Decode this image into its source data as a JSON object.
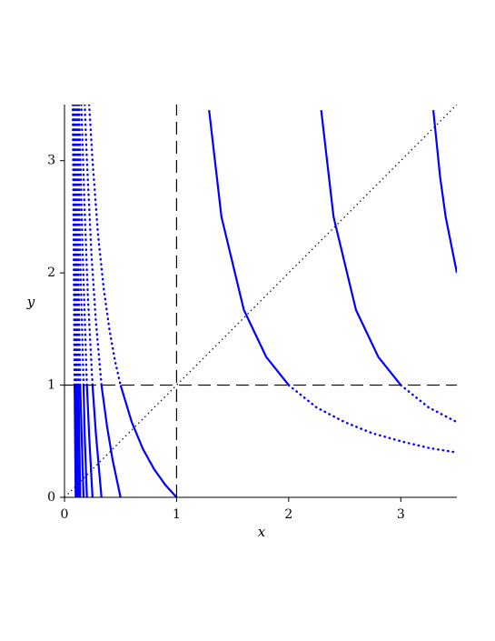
{
  "chart_data": {
    "type": "line",
    "x_label": "x",
    "y_label": "y",
    "xlim": [
      0,
      3.5
    ],
    "ylim": [
      0,
      3.5
    ],
    "xticks": [
      0,
      1,
      2,
      3
    ],
    "yticks": [
      0,
      1,
      2,
      3
    ],
    "series": [
      {
        "color": "#0000ff",
        "dash": "solid",
        "x": [
          0.5,
          0.6,
          0.7,
          0.8,
          0.9,
          1
        ],
        "values": [
          1,
          0.67,
          0.43,
          0.25,
          0.11,
          0
        ]
      },
      {
        "color": "#0000ff",
        "dash": "dotted",
        "x": [
          0.22,
          0.25,
          0.3,
          0.35,
          0.4,
          0.45,
          0.5
        ],
        "values": [
          3.5,
          3,
          2.33,
          1.86,
          1.5,
          1.22,
          1
        ]
      },
      {
        "color": "#0000ff",
        "dash": "solid",
        "x": [
          0.33,
          0.38,
          0.43,
          0.5
        ],
        "values": [
          1,
          0.63,
          0.33,
          0
        ]
      },
      {
        "color": "#0000ff",
        "dash": "dotted",
        "x": [
          0.18,
          0.2,
          0.24,
          0.28,
          0.33
        ],
        "values": [
          3.5,
          3,
          2.17,
          1.57,
          1
        ]
      },
      {
        "color": "#0000ff",
        "dash": "solid",
        "x": [
          0.25,
          0.28,
          0.33
        ],
        "values": [
          1,
          0.57,
          0
        ]
      },
      {
        "color": "#0000ff",
        "dash": "dotted",
        "x": [
          0.15,
          0.18,
          0.21,
          0.25
        ],
        "values": [
          3.5,
          2.56,
          1.76,
          1
        ]
      },
      {
        "color": "#0000ff",
        "dash": "solid",
        "x": [
          0.2,
          0.22,
          0.25
        ],
        "values": [
          1,
          0.55,
          0
        ]
      },
      {
        "color": "#0000ff",
        "dash": "dotted",
        "x": [
          0.13,
          0.16,
          0.2
        ],
        "values": [
          3.5,
          2.25,
          1
        ]
      },
      {
        "color": "#0000ff",
        "dash": "solid",
        "x": [
          0.17,
          0.18,
          0.2
        ],
        "values": [
          1,
          0.56,
          0
        ]
      },
      {
        "color": "#0000ff",
        "dash": "dotted",
        "x": [
          0.12,
          0.14,
          0.17
        ],
        "values": [
          3.5,
          2.14,
          1
        ]
      },
      {
        "color": "#0000ff",
        "dash": "solid",
        "x": [
          0.14,
          0.15,
          0.17
        ],
        "values": [
          1,
          0.67,
          0
        ]
      },
      {
        "color": "#0000ff",
        "dash": "dotted",
        "x": [
          0.11,
          0.125,
          0.14
        ],
        "values": [
          3.5,
          2,
          1
        ]
      },
      {
        "color": "#0000ff",
        "dash": "solid",
        "x": [
          0.125,
          0.14
        ],
        "values": [
          1,
          0
        ]
      },
      {
        "color": "#0000ff",
        "dash": "dotted",
        "x": [
          0.095,
          0.11,
          0.125
        ],
        "values": [
          3.5,
          2.09,
          1
        ]
      },
      {
        "color": "#0000ff",
        "dash": "solid",
        "x": [
          0.11,
          0.125
        ],
        "values": [
          1,
          0
        ]
      },
      {
        "color": "#0000ff",
        "dash": "dotted",
        "x": [
          0.087,
          0.1,
          0.11
        ],
        "values": [
          3.5,
          2,
          1
        ]
      },
      {
        "color": "#0000ff",
        "dash": "solid",
        "x": [
          0.1,
          0.11
        ],
        "values": [
          1,
          0
        ]
      },
      {
        "color": "#0000ff",
        "dash": "dotted",
        "x": [
          0.08,
          0.1
        ],
        "values": [
          3.5,
          1
        ]
      },
      {
        "color": "#0000ff",
        "dash": "solid",
        "x": [
          0.09,
          0.1
        ],
        "values": [
          1,
          0
        ]
      },
      {
        "color": "#0000ff",
        "dash": "dotted",
        "x": [
          0.074,
          0.09
        ],
        "values": [
          3.5,
          1
        ]
      },
      {
        "color": "#0000ff",
        "dash": "solid",
        "x": [
          1.29,
          1.4,
          1.6,
          1.8,
          2
        ],
        "values": [
          3.45,
          2.5,
          1.67,
          1.25,
          1
        ]
      },
      {
        "color": "#0000ff",
        "dash": "dotted",
        "x": [
          2,
          2.25,
          2.5,
          2.75,
          3,
          3.25,
          3.5
        ],
        "values": [
          1,
          0.8,
          0.67,
          0.57,
          0.5,
          0.44,
          0.4
        ]
      },
      {
        "color": "#0000ff",
        "dash": "solid",
        "x": [
          2.29,
          2.4,
          2.6,
          2.8,
          3
        ],
        "values": [
          3.45,
          2.5,
          1.67,
          1.25,
          1
        ]
      },
      {
        "color": "#0000ff",
        "dash": "dotted",
        "x": [
          3,
          3.25,
          3.5
        ],
        "values": [
          1,
          0.8,
          0.67
        ]
      },
      {
        "color": "#0000ff",
        "dash": "solid",
        "x": [
          3.29,
          3.35,
          3.4,
          3.5
        ],
        "values": [
          3.45,
          2.86,
          2.5,
          2
        ]
      },
      {
        "color": "#000000",
        "dash": "dashed",
        "x": [
          1,
          1
        ],
        "values": [
          0,
          3.5
        ]
      },
      {
        "color": "#000000",
        "dash": "dashed",
        "x": [
          0,
          3.5
        ],
        "values": [
          1,
          1
        ]
      },
      {
        "color": "#000000",
        "dash": "fine",
        "x": [
          0,
          3.5
        ],
        "values": [
          0,
          3.5
        ]
      }
    ]
  }
}
